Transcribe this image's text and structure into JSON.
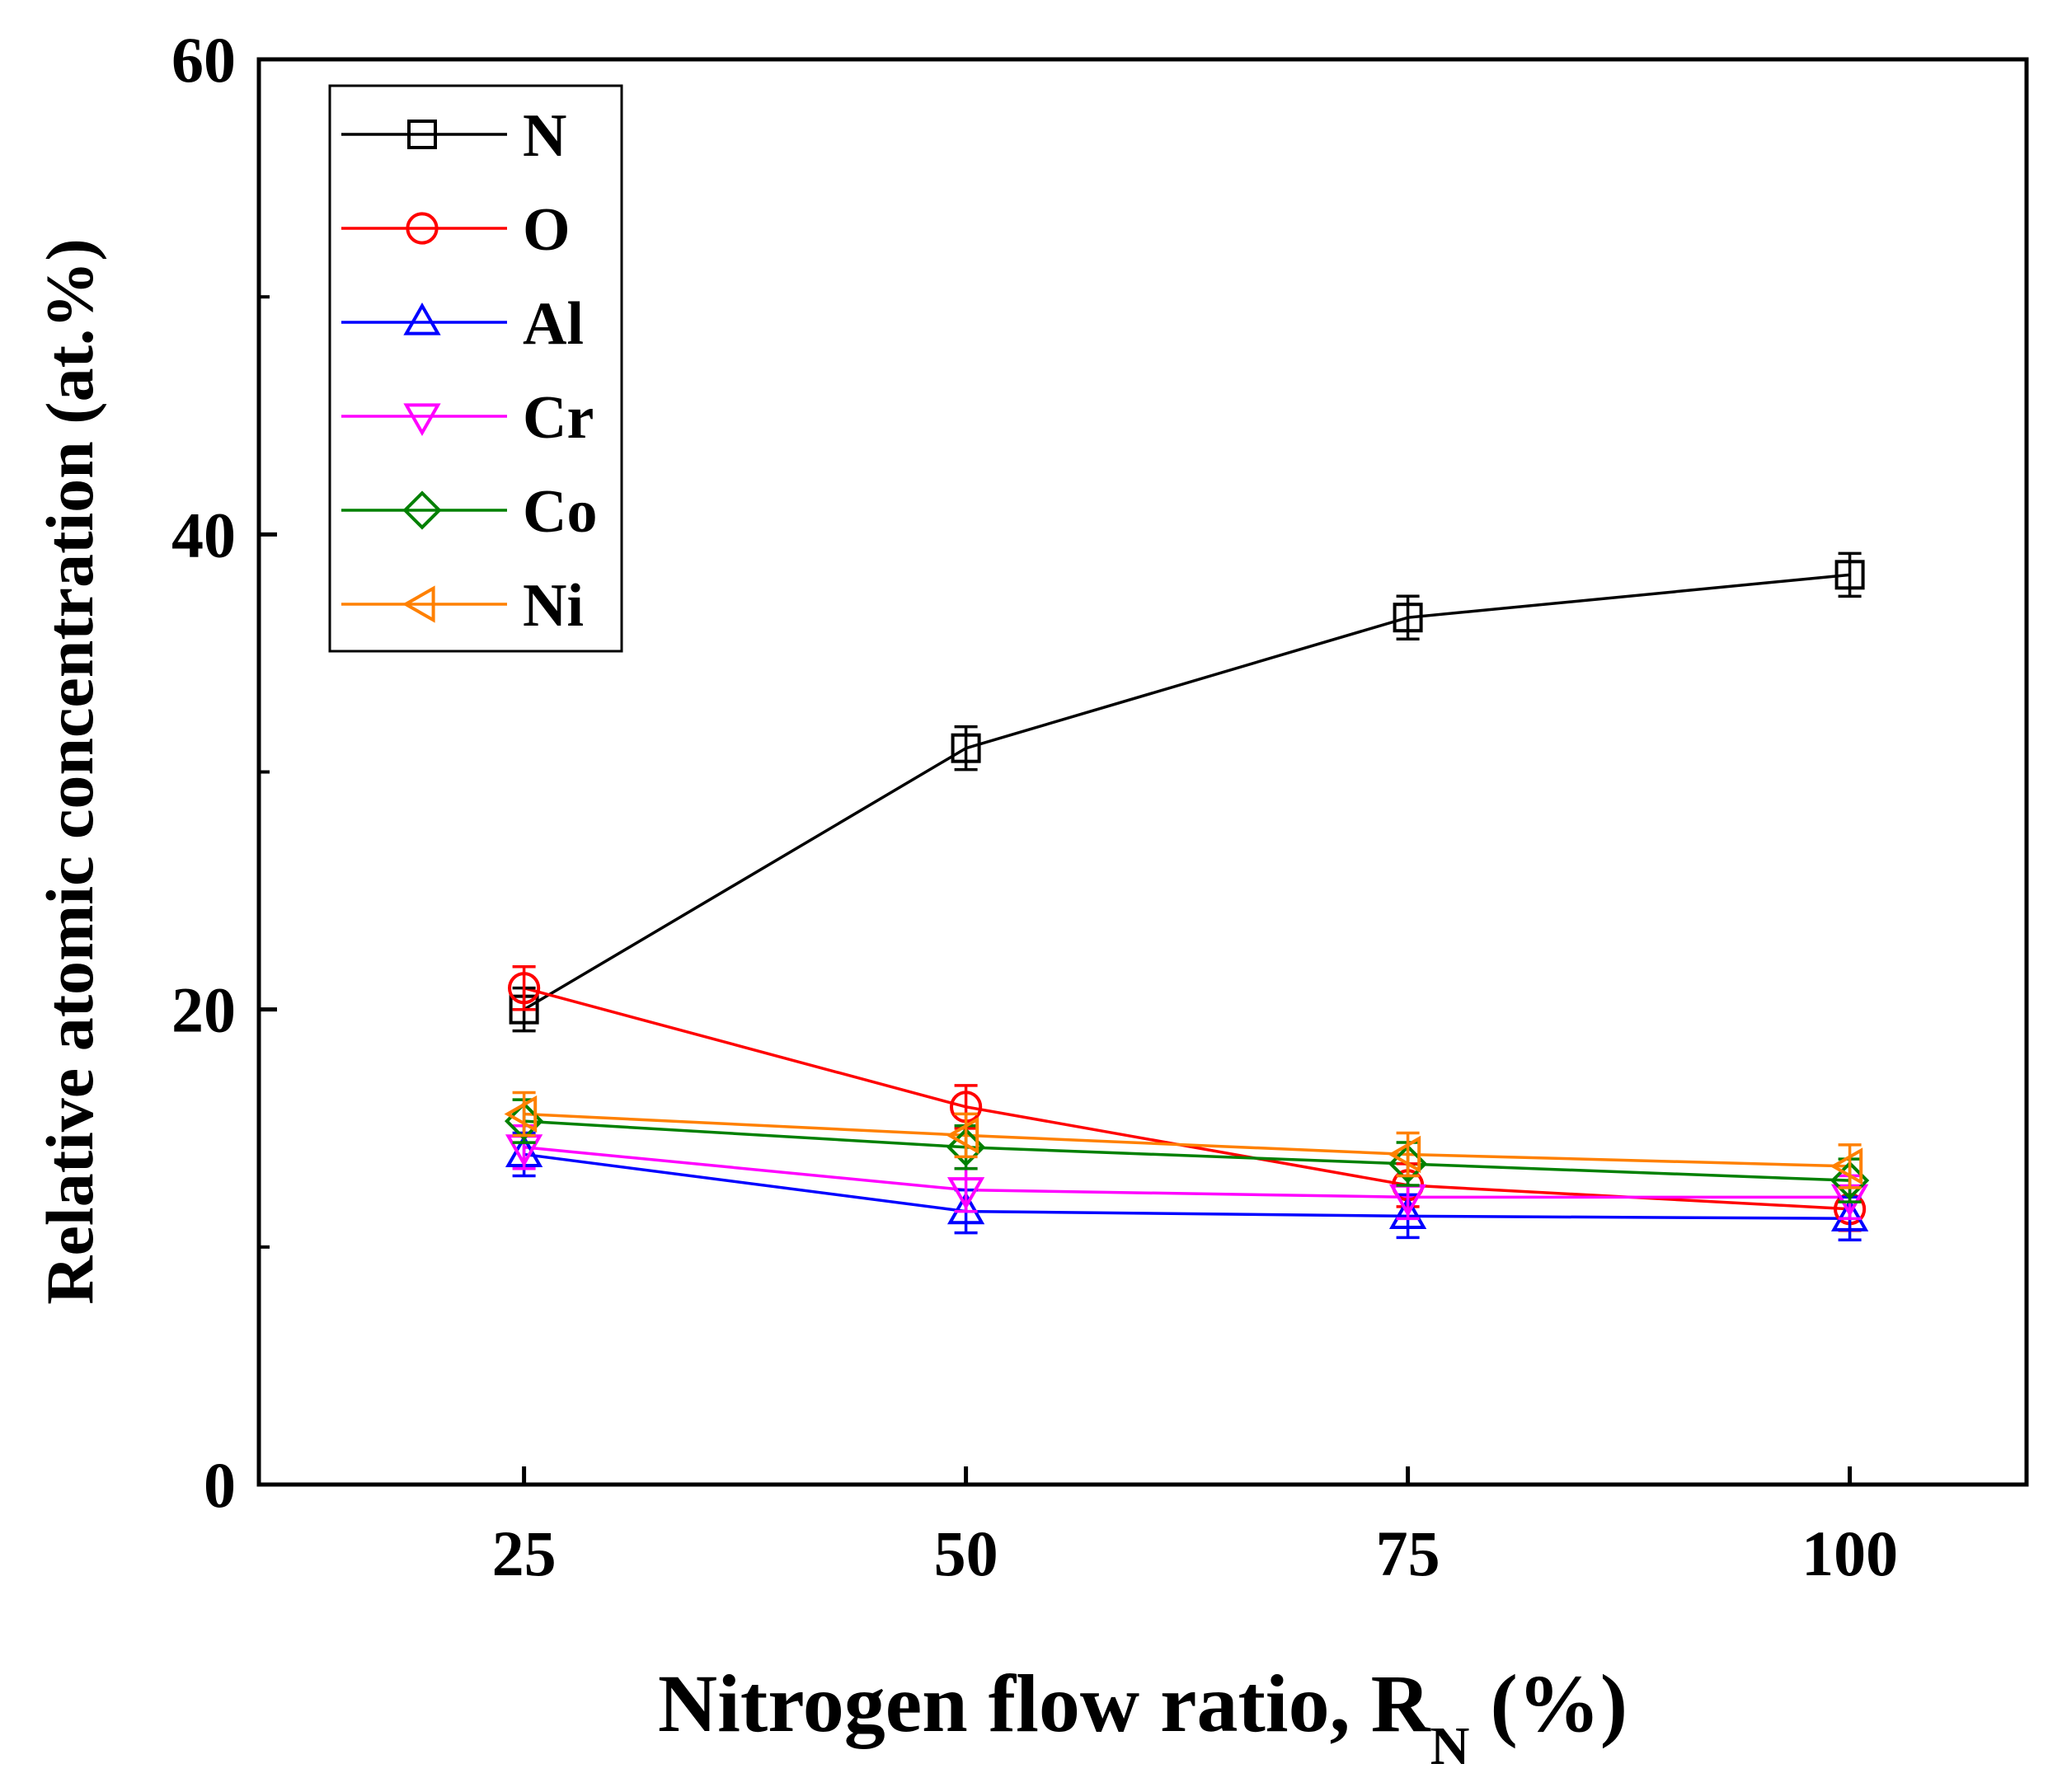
{
  "chart_data": {
    "type": "line",
    "title": "",
    "xlabel": "Nitrogen flow ratio, R",
    "xlabel_subscript": "N",
    "xlabel_suffix": " (%)",
    "ylabel": "Relative atomic concentration (at.%)",
    "x": [
      25,
      50,
      75,
      100
    ],
    "xlim": [
      10,
      110
    ],
    "ylim": [
      0,
      60
    ],
    "xticks": [
      25,
      50,
      75,
      100
    ],
    "xtick_labels": [
      "25",
      "50",
      "75",
      "100"
    ],
    "yticks": [
      0,
      20,
      40,
      60
    ],
    "ytick_labels": [
      "0",
      "20",
      "40",
      "60"
    ],
    "yminor_ticks": [
      10,
      30,
      50
    ],
    "grid": false,
    "legend_position": "top-left",
    "series": [
      {
        "name": "N",
        "color": "#000000",
        "marker": "square",
        "values": [
          20.0,
          31.0,
          36.5,
          38.3
        ]
      },
      {
        "name": "O",
        "color": "#ff0000",
        "marker": "circle",
        "values": [
          20.9,
          15.9,
          12.6,
          11.6
        ]
      },
      {
        "name": "Al",
        "color": "#0000ff",
        "marker": "triangle-up",
        "values": [
          13.9,
          11.5,
          11.3,
          11.2
        ]
      },
      {
        "name": "Cr",
        "color": "#ff00ff",
        "marker": "triangle-down",
        "values": [
          14.2,
          12.4,
          12.1,
          12.1
        ]
      },
      {
        "name": "Co",
        "color": "#008000",
        "marker": "diamond",
        "values": [
          15.3,
          14.2,
          13.5,
          12.8
        ]
      },
      {
        "name": "Ni",
        "color": "#ff8000",
        "marker": "triangle-left",
        "values": [
          15.6,
          14.7,
          13.9,
          13.4
        ]
      }
    ]
  }
}
